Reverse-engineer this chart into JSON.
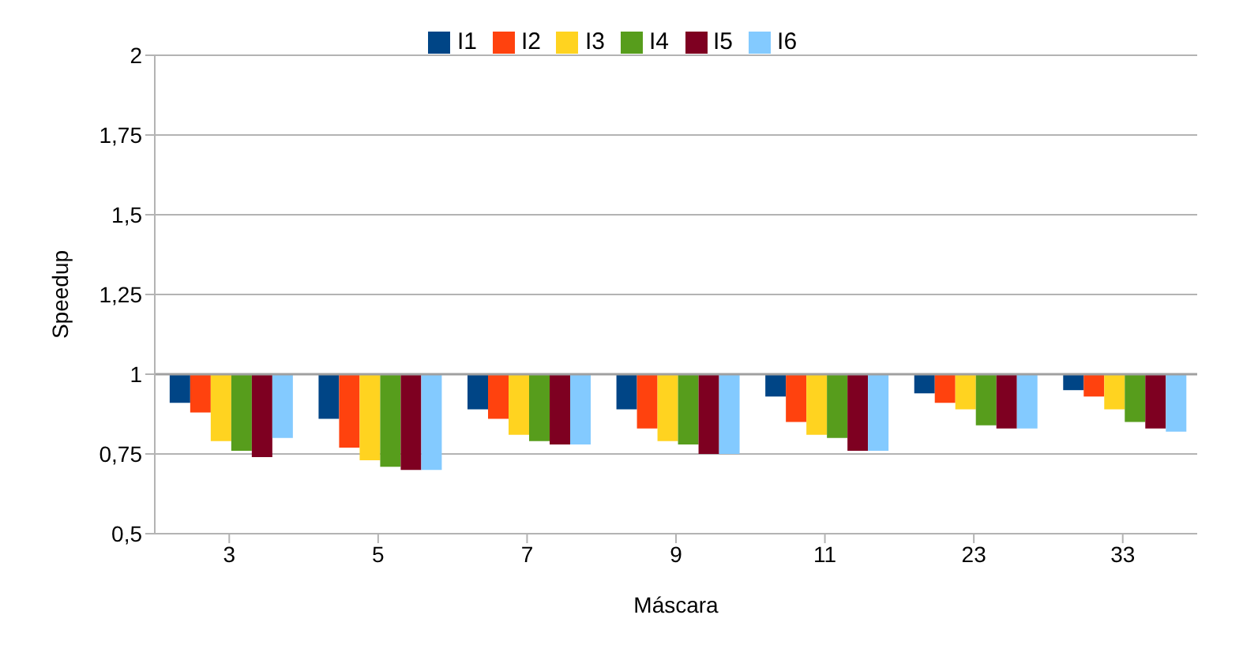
{
  "chart_data": {
    "type": "bar",
    "xlabel": "Máscara",
    "ylabel": "Speedup",
    "categories": [
      "3",
      "5",
      "7",
      "9",
      "11",
      "23",
      "33"
    ],
    "series": [
      {
        "name": "I1",
        "color": "#004586",
        "base": [
          1,
          1,
          1,
          1,
          1,
          1,
          1
        ],
        "values": [
          -0.09,
          -0.14,
          -0.11,
          -0.11,
          -0.07,
          -0.06,
          -0.05
        ]
      },
      {
        "name": "I2",
        "color": "#ff420e",
        "base": [
          1,
          1,
          1,
          1,
          1,
          1,
          1
        ],
        "values": [
          -0.12,
          -0.23,
          -0.14,
          -0.17,
          -0.15,
          -0.09,
          -0.07
        ]
      },
      {
        "name": "I3",
        "color": "#ffd320",
        "base": [
          1,
          1,
          1,
          1,
          1,
          1,
          1
        ],
        "values": [
          -0.21,
          -0.27,
          -0.19,
          -0.21,
          -0.19,
          -0.11,
          -0.11
        ]
      },
      {
        "name": "I4",
        "color": "#579d1c",
        "base": [
          1,
          1,
          1,
          1,
          1,
          1,
          1
        ],
        "values": [
          -0.24,
          -0.29,
          -0.21,
          -0.22,
          -0.2,
          -0.16,
          -0.15
        ]
      },
      {
        "name": "I5",
        "color": "#7e0021",
        "base": [
          1,
          1,
          1,
          1,
          1,
          1,
          1
        ],
        "values": [
          -0.26,
          -0.3,
          -0.22,
          -0.25,
          -0.24,
          -0.17,
          -0.17
        ]
      },
      {
        "name": "I6",
        "color": "#83caff",
        "base": [
          1,
          1,
          1,
          1,
          1,
          1,
          1
        ],
        "values": [
          -0.2,
          -0.3,
          -0.22,
          -0.25,
          -0.24,
          -0.17,
          -0.18
        ]
      }
    ],
    "ylim": [
      0.5,
      2
    ],
    "yticks": [
      {
        "value": 0.5,
        "label": "0,5"
      },
      {
        "value": 0.75,
        "label": "0,75"
      },
      {
        "value": 1,
        "label": "1"
      },
      {
        "value": 1.25,
        "label": "1,25"
      },
      {
        "value": 1.5,
        "label": "1,5"
      },
      {
        "value": 1.75,
        "label": "1,75"
      },
      {
        "value": 2,
        "label": "2"
      }
    ],
    "ref_lines": [
      {
        "axis": "y",
        "value": 1
      }
    ],
    "grid": "y",
    "legend": "top"
  }
}
